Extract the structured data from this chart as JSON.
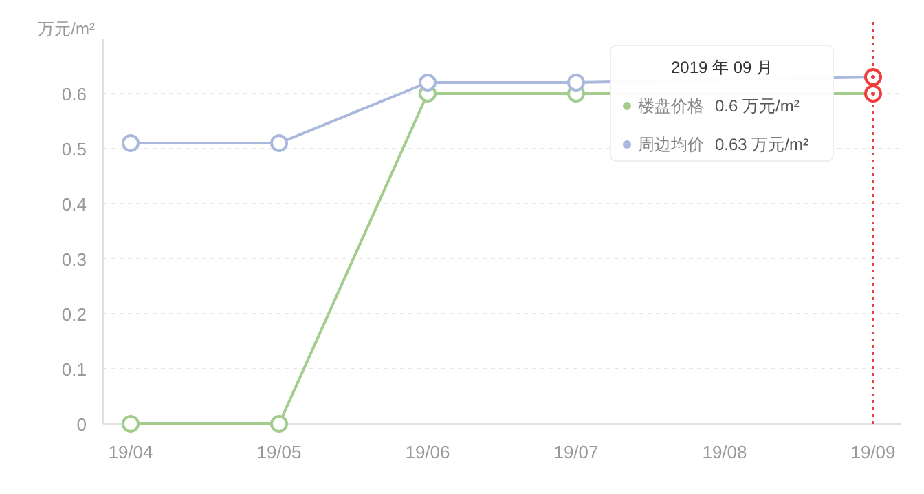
{
  "chart_data": {
    "type": "line",
    "ylabel": "万元/m²",
    "categories": [
      "19/04",
      "19/05",
      "19/06",
      "19/07",
      "19/08",
      "19/09"
    ],
    "series": [
      {
        "name": "楼盘价格",
        "color": "#a5cc8f",
        "values": [
          0,
          0,
          0.6,
          0.6,
          null,
          0.6
        ]
      },
      {
        "name": "周边均价",
        "color": "#a9b8dc",
        "values": [
          0.51,
          0.51,
          0.62,
          0.62,
          null,
          0.63
        ]
      }
    ],
    "ylim": [
      0,
      0.7
    ],
    "yticks": [
      0,
      0.1,
      0.2,
      0.3,
      0.4,
      0.5,
      0.6
    ],
    "grid": "y",
    "marker": "circle",
    "line_style": "solid",
    "legend": "top right",
    "ref_lines": [
      {
        "axis": "x",
        "value": "19/09",
        "color": "#f03c3c",
        "line_style": "dotted"
      }
    ],
    "annotations": [
      "2019 年 09 月",
      "0.6 万元/m²",
      "0.63 万元/m²"
    ]
  }
}
